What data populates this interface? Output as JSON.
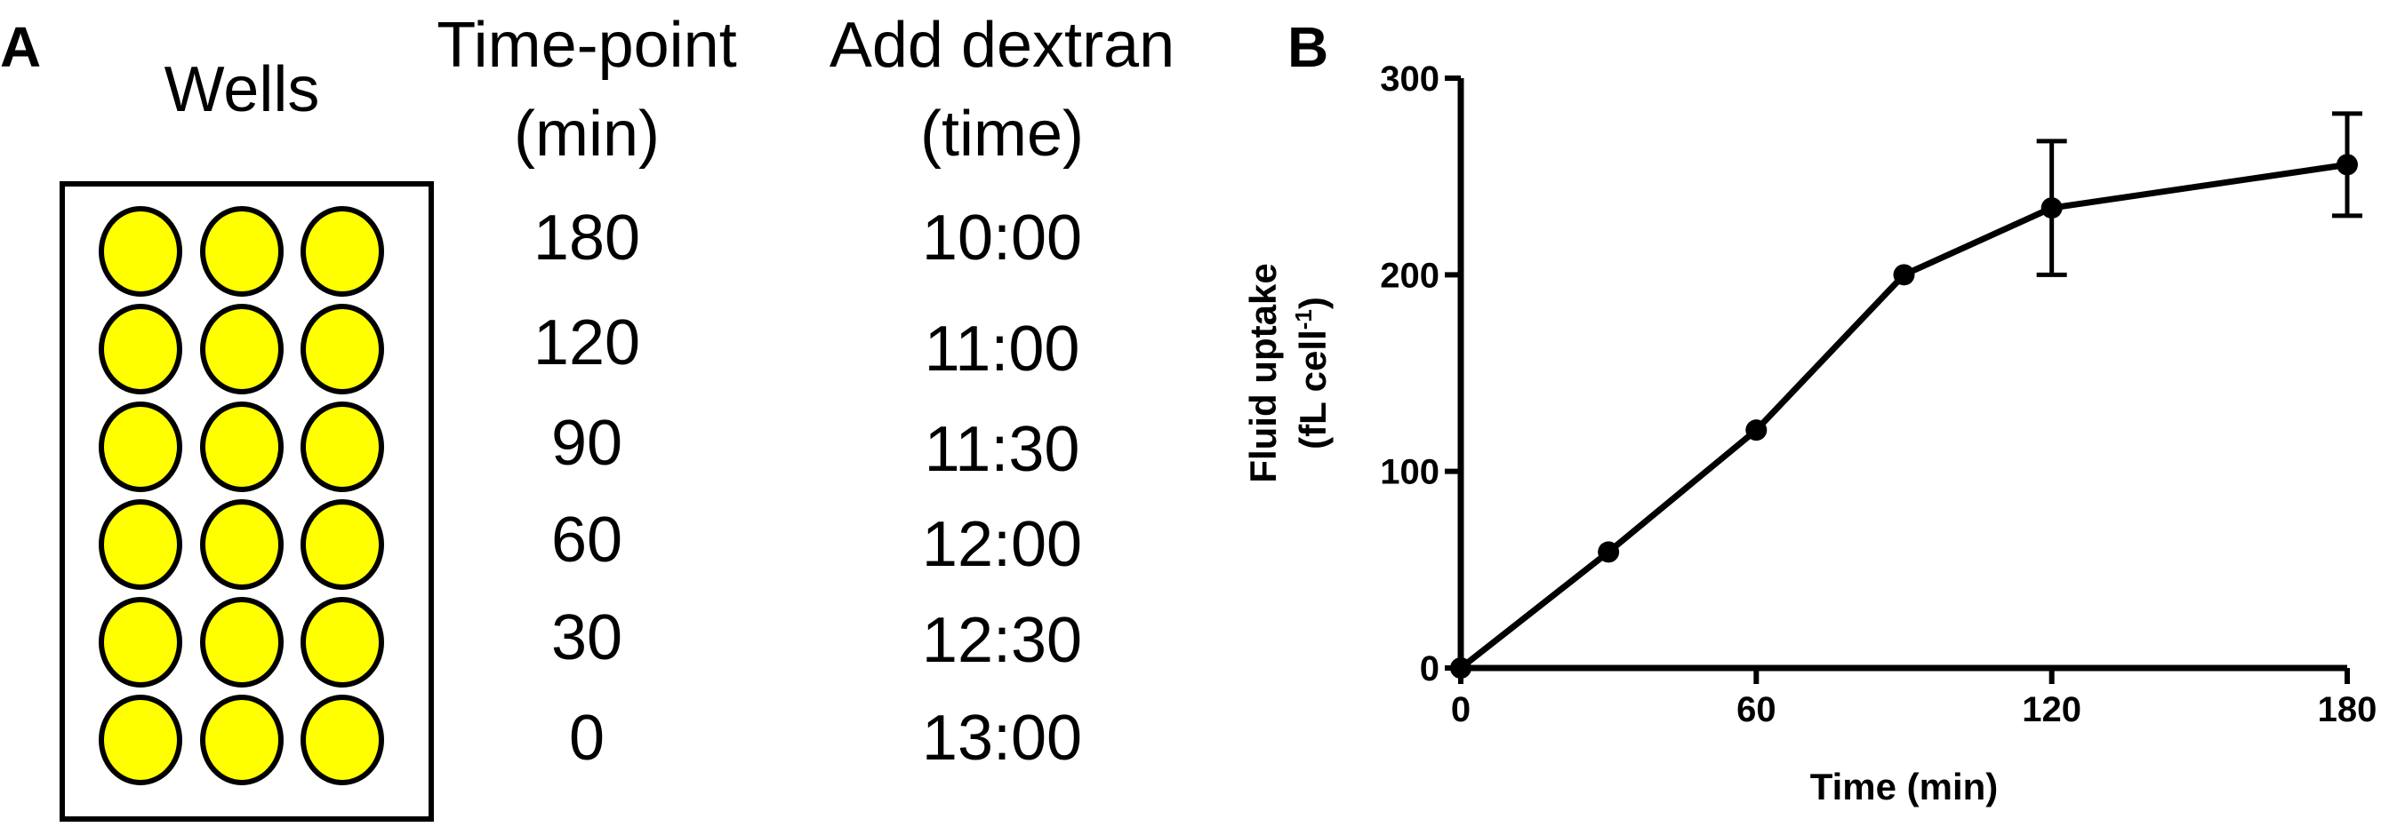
{
  "panel_a": {
    "label": "A",
    "wells_header": "Wells",
    "timepoint_header": [
      "Time-point",
      "(min)"
    ],
    "dextran_header": [
      "Add dextran",
      "(time)"
    ],
    "plate": {
      "rows": 6,
      "cols": 3,
      "well_color": "#ffff00"
    },
    "rows": [
      {
        "timepoint": "180",
        "dextran": "10:00"
      },
      {
        "timepoint": "120",
        "dextran": "11:00"
      },
      {
        "timepoint": "90",
        "dextran": "11:30"
      },
      {
        "timepoint": "60",
        "dextran": "12:00"
      },
      {
        "timepoint": "30",
        "dextran": "12:30"
      },
      {
        "timepoint": "0",
        "dextran": "13:00"
      }
    ]
  },
  "panel_b": {
    "label": "B"
  },
  "chart_data": {
    "type": "line",
    "title": "",
    "xlabel": "Time (min)",
    "ylabel_lines": [
      "Fluid uptake",
      "(fL cell",
      "-1",
      ")"
    ],
    "xlim": [
      0,
      180
    ],
    "ylim": [
      0,
      300
    ],
    "xticks": [
      0,
      60,
      120,
      180
    ],
    "yticks": [
      0,
      100,
      200,
      300
    ],
    "grid": false,
    "series": [
      {
        "x": [
          0,
          30,
          60,
          90,
          120,
          180
        ],
        "y": [
          0,
          59,
          121,
          200,
          234,
          256
        ],
        "error": [
          0,
          0,
          0,
          0,
          34,
          26
        ]
      }
    ]
  }
}
